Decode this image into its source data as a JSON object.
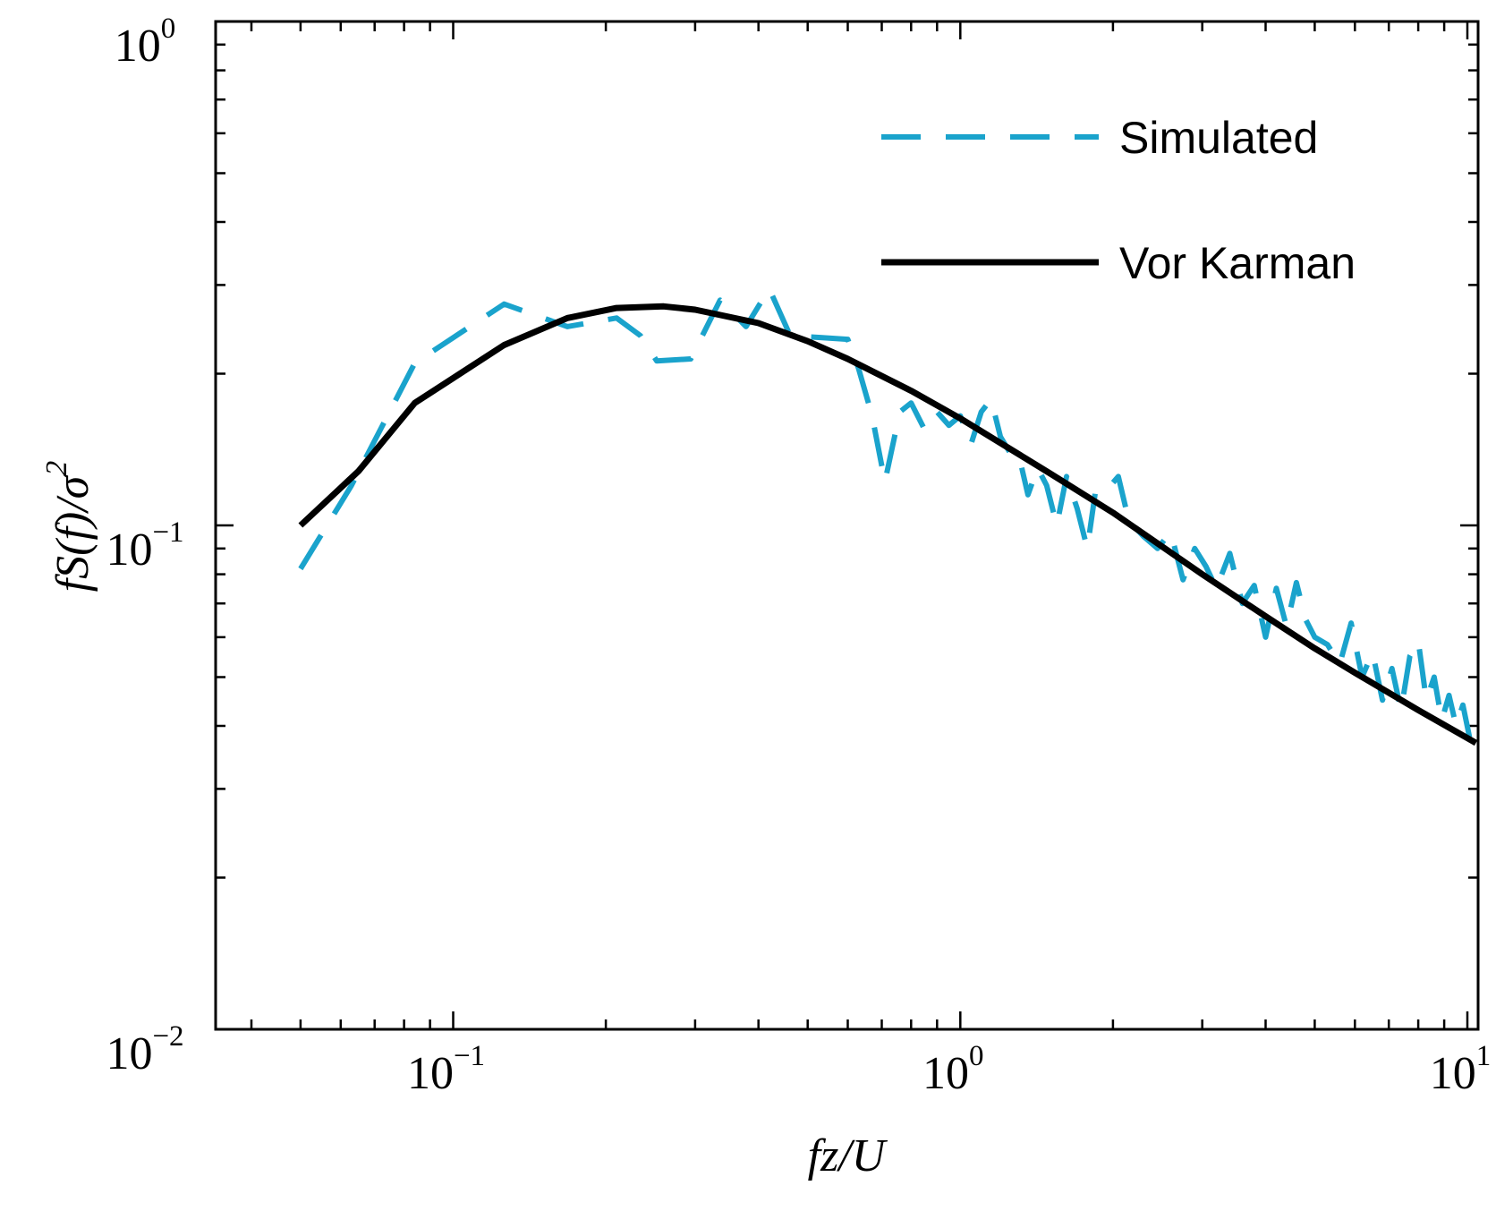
{
  "chart_data": {
    "type": "line",
    "title": "",
    "x_scale": "log",
    "y_scale": "log",
    "xlim": [
      0.034,
      10.5
    ],
    "ylim": [
      0.01,
      1
    ],
    "xlabel": "fz/U",
    "ylabel": {
      "prefix": "fS(f)/",
      "sigma": "σ",
      "power": "2"
    },
    "x_ticks": [
      {
        "base": "10",
        "exp": "−1",
        "value": 0.1
      },
      {
        "base": "10",
        "exp": "0",
        "value": 1
      },
      {
        "base": "10",
        "exp": "1",
        "value": 10
      }
    ],
    "y_ticks": [
      {
        "base": "10",
        "exp": "−2",
        "value": 0.01
      },
      {
        "base": "10",
        "exp": "−1",
        "value": 0.1
      },
      {
        "base": "10",
        "exp": "0",
        "value": 1
      }
    ],
    "legend": {
      "location": "top-right",
      "entries": [
        "Simulated",
        "Vor Karman"
      ]
    },
    "series": [
      {
        "name": "Simulated",
        "style": "dashed",
        "color": "#1aa3cc",
        "points": [
          [
            0.05,
            0.082
          ],
          [
            0.063,
            0.12
          ],
          [
            0.084,
            0.21
          ],
          [
            0.126,
            0.275
          ],
          [
            0.168,
            0.248
          ],
          [
            0.21,
            0.258
          ],
          [
            0.234,
            0.238
          ],
          [
            0.252,
            0.212
          ],
          [
            0.294,
            0.214
          ],
          [
            0.336,
            0.28
          ],
          [
            0.378,
            0.248
          ],
          [
            0.42,
            0.295
          ],
          [
            0.462,
            0.238
          ],
          [
            0.53,
            0.236
          ],
          [
            0.6,
            0.234
          ],
          [
            0.63,
            0.205
          ],
          [
            0.67,
            0.165
          ],
          [
            0.71,
            0.122
          ],
          [
            0.76,
            0.168
          ],
          [
            0.8,
            0.175
          ],
          [
            0.85,
            0.155
          ],
          [
            0.9,
            0.168
          ],
          [
            0.95,
            0.158
          ],
          [
            1.0,
            0.165
          ],
          [
            1.05,
            0.145
          ],
          [
            1.1,
            0.168
          ],
          [
            1.15,
            0.178
          ],
          [
            1.2,
            0.15
          ],
          [
            1.25,
            0.14
          ],
          [
            1.3,
            0.14
          ],
          [
            1.36,
            0.115
          ],
          [
            1.42,
            0.13
          ],
          [
            1.48,
            0.12
          ],
          [
            1.55,
            0.1
          ],
          [
            1.62,
            0.125
          ],
          [
            1.7,
            0.108
          ],
          [
            1.78,
            0.09
          ],
          [
            1.85,
            0.118
          ],
          [
            1.95,
            0.118
          ],
          [
            2.05,
            0.125
          ],
          [
            2.15,
            0.102
          ],
          [
            2.3,
            0.095
          ],
          [
            2.45,
            0.09
          ],
          [
            2.6,
            0.097
          ],
          [
            2.75,
            0.078
          ],
          [
            2.9,
            0.09
          ],
          [
            3.05,
            0.083
          ],
          [
            3.2,
            0.075
          ],
          [
            3.4,
            0.088
          ],
          [
            3.6,
            0.07
          ],
          [
            3.8,
            0.076
          ],
          [
            4.0,
            0.06
          ],
          [
            4.2,
            0.075
          ],
          [
            4.4,
            0.063
          ],
          [
            4.6,
            0.077
          ],
          [
            4.8,
            0.065
          ],
          [
            5.0,
            0.06
          ],
          [
            5.3,
            0.058
          ],
          [
            5.6,
            0.053
          ],
          [
            5.9,
            0.064
          ],
          [
            6.2,
            0.05
          ],
          [
            6.5,
            0.056
          ],
          [
            6.8,
            0.045
          ],
          [
            7.1,
            0.052
          ],
          [
            7.4,
            0.043
          ],
          [
            7.7,
            0.055
          ],
          [
            8.0,
            0.059
          ],
          [
            8.3,
            0.045
          ],
          [
            8.6,
            0.05
          ],
          [
            8.9,
            0.041
          ],
          [
            9.2,
            0.046
          ],
          [
            9.5,
            0.04
          ],
          [
            9.8,
            0.044
          ],
          [
            10.1,
            0.038
          ],
          [
            10.4,
            0.042
          ]
        ]
      },
      {
        "name": "Vor Karman",
        "style": "solid",
        "color": "#000000",
        "points": [
          [
            0.05,
            0.1
          ],
          [
            0.065,
            0.128
          ],
          [
            0.084,
            0.175
          ],
          [
            0.126,
            0.228
          ],
          [
            0.168,
            0.258
          ],
          [
            0.21,
            0.27
          ],
          [
            0.26,
            0.272
          ],
          [
            0.3,
            0.268
          ],
          [
            0.4,
            0.252
          ],
          [
            0.5,
            0.232
          ],
          [
            0.6,
            0.214
          ],
          [
            0.8,
            0.185
          ],
          [
            1.0,
            0.163
          ],
          [
            1.5,
            0.127
          ],
          [
            2.0,
            0.106
          ],
          [
            3.0,
            0.08
          ],
          [
            4.0,
            0.066
          ],
          [
            5.0,
            0.057
          ],
          [
            6.0,
            0.051
          ],
          [
            8.0,
            0.043
          ],
          [
            10.4,
            0.037
          ]
        ]
      }
    ]
  }
}
